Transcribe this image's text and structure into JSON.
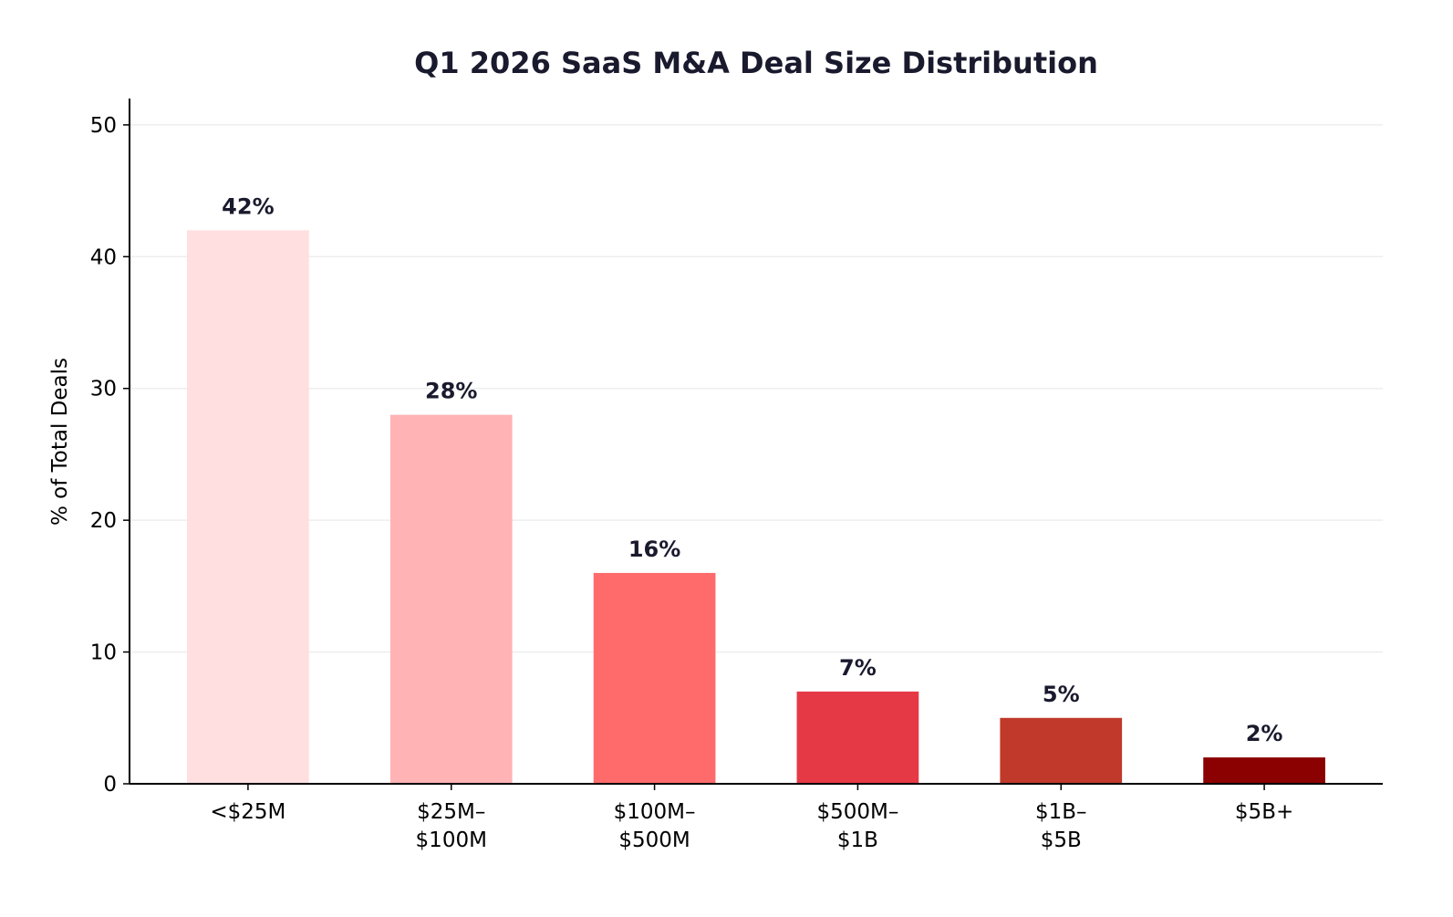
{
  "chart_data": {
    "type": "bar",
    "title": "Q1 2026 SaaS M&A Deal Size Distribution",
    "xlabel": "",
    "ylabel": "% of Total Deals",
    "categories": [
      [
        "<$25M"
      ],
      [
        "$25M–",
        "$100M"
      ],
      [
        "$100M–",
        "$500M"
      ],
      [
        "$500M–",
        "$1B"
      ],
      [
        "$1B–",
        "$5B"
      ],
      [
        "$5B+"
      ]
    ],
    "values": [
      42,
      28,
      16,
      7,
      5,
      2
    ],
    "data_labels": [
      "42%",
      "28%",
      "16%",
      "7%",
      "5%",
      "2%"
    ],
    "colors": [
      "#ffdfe0",
      "#ffb3b4",
      "#ff6b6b",
      "#e63946",
      "#c0392b",
      "#8b0000"
    ],
    "ylim": [
      0,
      52
    ],
    "yticks": [
      0,
      10,
      20,
      30,
      40,
      50
    ],
    "grid": "horizontal",
    "legend": "none"
  }
}
